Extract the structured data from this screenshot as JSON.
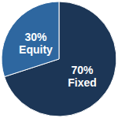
{
  "chart_data": {
    "type": "pie",
    "categories": [
      "Fixed",
      "Equity"
    ],
    "values": [
      70,
      30
    ],
    "value_labels": [
      "70%",
      "30%"
    ],
    "colors": [
      "#1c3656",
      "#2e67a0"
    ],
    "data_labels": true
  }
}
